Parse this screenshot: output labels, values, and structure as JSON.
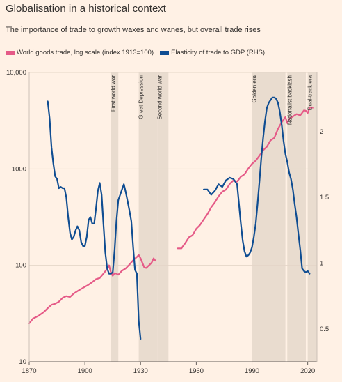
{
  "title": "Globalisation in a historical context",
  "subtitle": "The importance of trade to growth waxes and wanes, but overall trade rises",
  "colors": {
    "background": "#fff1e5",
    "trade": "#e55a87",
    "elasticity": "#0f4d92",
    "band": "#e9dccf"
  },
  "chart_data": {
    "type": "line",
    "title": "Globalisation in a historical context",
    "subtitle": "The importance of trade to growth waxes and wanes, but overall trade rises",
    "xlim": [
      1870,
      2025
    ],
    "x_ticks": [
      "1870",
      "1900",
      "1930",
      "1960",
      "1990",
      "2020"
    ],
    "y_left": {
      "scale": "log",
      "lim": [
        10,
        10000
      ],
      "tick_labels": [
        "10,000",
        "1000",
        "100",
        "10"
      ],
      "tick_values": [
        10000,
        1000,
        100,
        10
      ]
    },
    "y_right": {
      "scale": "linear",
      "lim": [
        0.25,
        2.45
      ],
      "tick_labels": [
        "2",
        "1.5",
        "1",
        "0.5"
      ],
      "tick_values": [
        2,
        1.5,
        1,
        0.5
      ]
    },
    "legend_position": "top-left",
    "legend": [
      "World goods trade, log scale (index 1913=100)",
      "Elasticity of trade to GDP (RHS)"
    ],
    "eras": [
      {
        "label": "First world war",
        "start": 1914,
        "end": 1918
      },
      {
        "label": "Great Depression",
        "start": 1929,
        "end": 1939
      },
      {
        "label": "Second world war",
        "start": 1939,
        "end": 1945
      },
      {
        "label": "Golden era",
        "start": 1990,
        "end": 2008
      },
      {
        "label": "Nationalist backlash",
        "start": 2009,
        "end": 2019
      },
      {
        "label": "Dual-track era",
        "start": 2020,
        "end": 2025
      }
    ],
    "series": [
      {
        "name": "World goods trade, log scale (index 1913=100)",
        "axis": "left",
        "segments": [
          [
            [
              1870,
              25
            ],
            [
              1872,
              28
            ],
            [
              1875,
              30
            ],
            [
              1878,
              33
            ],
            [
              1880,
              36
            ],
            [
              1882,
              39
            ],
            [
              1884,
              40
            ],
            [
              1886,
              42
            ],
            [
              1888,
              46
            ],
            [
              1890,
              48
            ],
            [
              1892,
              47
            ],
            [
              1894,
              51
            ],
            [
              1896,
              54
            ],
            [
              1898,
              57
            ],
            [
              1900,
              60
            ],
            [
              1902,
              63
            ],
            [
              1904,
              67
            ],
            [
              1906,
              72
            ],
            [
              1908,
              74
            ],
            [
              1910,
              82
            ],
            [
              1912,
              92
            ],
            [
              1913,
              100
            ],
            [
              1914,
              85
            ],
            [
              1915,
              78
            ],
            [
              1916,
              83
            ],
            [
              1917,
              82
            ],
            [
              1918,
              80
            ],
            [
              1920,
              88
            ],
            [
              1922,
              93
            ],
            [
              1924,
              102
            ],
            [
              1926,
              113
            ],
            [
              1928,
              122
            ],
            [
              1929,
              128
            ],
            [
              1930,
              118
            ],
            [
              1931,
              106
            ],
            [
              1932,
              95
            ],
            [
              1933,
              94
            ],
            [
              1934,
              98
            ],
            [
              1935,
              102
            ],
            [
              1936,
              107
            ],
            [
              1937,
              118
            ],
            [
              1938,
              112
            ]
          ],
          [
            [
              1950,
              150
            ],
            [
              1952,
              150
            ],
            [
              1954,
              170
            ],
            [
              1956,
              195
            ],
            [
              1958,
              205
            ],
            [
              1960,
              240
            ],
            [
              1962,
              262
            ],
            [
              1964,
              300
            ],
            [
              1966,
              340
            ],
            [
              1968,
              400
            ],
            [
              1970,
              450
            ],
            [
              1972,
              520
            ],
            [
              1974,
              580
            ],
            [
              1976,
              610
            ],
            [
              1978,
              700
            ],
            [
              1980,
              760
            ],
            [
              1982,
              740
            ],
            [
              1984,
              830
            ],
            [
              1986,
              880
            ],
            [
              1988,
              1010
            ],
            [
              1990,
              1130
            ],
            [
              1992,
              1220
            ],
            [
              1994,
              1370
            ],
            [
              1996,
              1560
            ],
            [
              1998,
              1700
            ],
            [
              2000,
              1980
            ],
            [
              2002,
              2100
            ],
            [
              2004,
              2600
            ],
            [
              2006,
              3050
            ],
            [
              2008,
              3450
            ],
            [
              2009,
              2980
            ],
            [
              2010,
              3300
            ],
            [
              2012,
              3500
            ],
            [
              2014,
              3700
            ],
            [
              2016,
              3600
            ],
            [
              2018,
              4050
            ],
            [
              2019,
              4000
            ],
            [
              2020,
              3800
            ],
            [
              2021,
              4300
            ],
            [
              2022,
              4350
            ],
            [
              2023,
              4300
            ]
          ]
        ]
      },
      {
        "name": "Elasticity of trade to GDP (RHS)",
        "axis": "right",
        "segments": [
          [
            [
              1880,
              2.23
            ],
            [
              1881,
              2.1
            ],
            [
              1882,
              1.88
            ],
            [
              1883,
              1.76
            ],
            [
              1884,
              1.66
            ],
            [
              1885,
              1.64
            ],
            [
              1886,
              1.57
            ],
            [
              1887,
              1.58
            ],
            [
              1888,
              1.57
            ],
            [
              1889,
              1.57
            ],
            [
              1890,
              1.5
            ],
            [
              1891,
              1.35
            ],
            [
              1892,
              1.23
            ],
            [
              1893,
              1.18
            ],
            [
              1894,
              1.2
            ],
            [
              1895,
              1.25
            ],
            [
              1896,
              1.28
            ],
            [
              1897,
              1.25
            ],
            [
              1898,
              1.16
            ],
            [
              1899,
              1.13
            ],
            [
              1900,
              1.13
            ],
            [
              1901,
              1.2
            ],
            [
              1902,
              1.33
            ],
            [
              1903,
              1.35
            ],
            [
              1904,
              1.3
            ],
            [
              1905,
              1.3
            ],
            [
              1906,
              1.42
            ],
            [
              1907,
              1.55
            ],
            [
              1908,
              1.61
            ],
            [
              1909,
              1.52
            ],
            [
              1910,
              1.3
            ],
            [
              1911,
              1.08
            ],
            [
              1912,
              0.96
            ],
            [
              1913,
              0.92
            ],
            [
              1914,
              0.92
            ],
            [
              1915,
              0.93
            ],
            [
              1916,
              1.1
            ],
            [
              1917,
              1.32
            ],
            [
              1918,
              1.48
            ],
            [
              1919,
              1.52
            ],
            [
              1920,
              1.56
            ],
            [
              1921,
              1.6
            ],
            [
              1922,
              1.54
            ],
            [
              1923,
              1.47
            ],
            [
              1924,
              1.4
            ],
            [
              1925,
              1.32
            ],
            [
              1926,
              1.12
            ],
            [
              1927,
              0.95
            ],
            [
              1928,
              0.92
            ],
            [
              1929,
              0.56
            ],
            [
              1930,
              0.42
            ]
          ],
          [
            [
              1964,
              1.56
            ],
            [
              1966,
              1.56
            ],
            [
              1968,
              1.52
            ],
            [
              1970,
              1.55
            ],
            [
              1972,
              1.6
            ],
            [
              1974,
              1.58
            ],
            [
              1976,
              1.63
            ],
            [
              1978,
              1.65
            ],
            [
              1980,
              1.64
            ],
            [
              1982,
              1.6
            ],
            [
              1983,
              1.45
            ],
            [
              1984,
              1.3
            ],
            [
              1985,
              1.17
            ],
            [
              1986,
              1.09
            ],
            [
              1987,
              1.05
            ],
            [
              1988,
              1.06
            ],
            [
              1989,
              1.08
            ],
            [
              1990,
              1.12
            ],
            [
              1991,
              1.2
            ],
            [
              1992,
              1.3
            ],
            [
              1993,
              1.45
            ],
            [
              1994,
              1.62
            ],
            [
              1995,
              1.8
            ],
            [
              1996,
              1.95
            ],
            [
              1997,
              2.08
            ],
            [
              1998,
              2.18
            ],
            [
              1999,
              2.22
            ],
            [
              2000,
              2.24
            ],
            [
              2001,
              2.26
            ],
            [
              2002,
              2.26
            ],
            [
              2003,
              2.25
            ],
            [
              2004,
              2.22
            ],
            [
              2005,
              2.15
            ],
            [
              2006,
              2.05
            ],
            [
              2007,
              1.93
            ],
            [
              2008,
              1.83
            ],
            [
              2009,
              1.77
            ],
            [
              2010,
              1.69
            ],
            [
              2011,
              1.64
            ],
            [
              2012,
              1.56
            ],
            [
              2013,
              1.45
            ],
            [
              2014,
              1.35
            ],
            [
              2015,
              1.22
            ],
            [
              2016,
              1.1
            ],
            [
              2017,
              0.96
            ],
            [
              2018,
              0.94
            ],
            [
              2019,
              0.93
            ],
            [
              2020,
              0.94
            ],
            [
              2021,
              0.92
            ]
          ]
        ]
      }
    ]
  }
}
